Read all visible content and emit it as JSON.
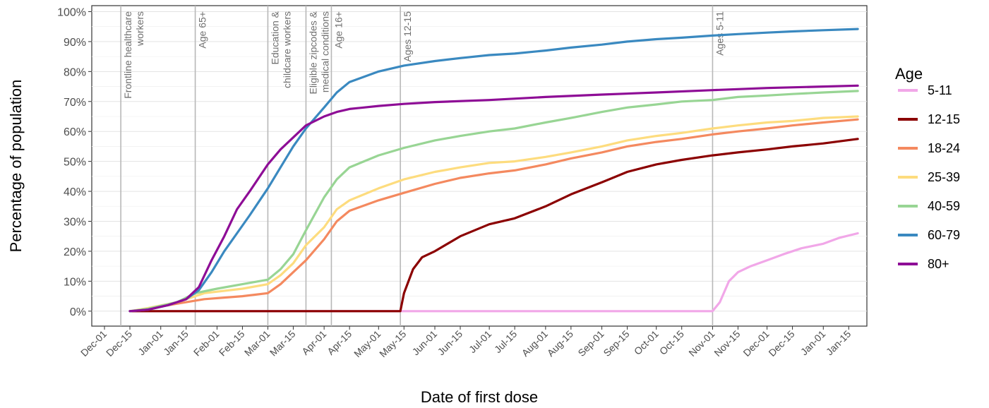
{
  "chart_data": {
    "type": "line",
    "title": "",
    "xlabel": "Date of first dose",
    "ylabel": "Percentage of population",
    "x_domain": [
      "2020-11-24",
      "2022-01-25"
    ],
    "ylim": [
      -5,
      102
    ],
    "y_ticks": [
      {
        "value": 0,
        "label": "0%"
      },
      {
        "value": 10,
        "label": "10%"
      },
      {
        "value": 20,
        "label": "20%"
      },
      {
        "value": 30,
        "label": "30%"
      },
      {
        "value": 40,
        "label": "40%"
      },
      {
        "value": 50,
        "label": "50%"
      },
      {
        "value": 60,
        "label": "60%"
      },
      {
        "value": 70,
        "label": "70%"
      },
      {
        "value": 80,
        "label": "80%"
      },
      {
        "value": 90,
        "label": "90%"
      },
      {
        "value": 100,
        "label": "100%"
      }
    ],
    "x_ticks": [
      {
        "date": "2020-12-01",
        "label": "Dec-01"
      },
      {
        "date": "2020-12-15",
        "label": "Dec-15"
      },
      {
        "date": "2021-01-01",
        "label": "Jan-01"
      },
      {
        "date": "2021-01-15",
        "label": "Jan-15"
      },
      {
        "date": "2021-02-01",
        "label": "Feb-01"
      },
      {
        "date": "2021-02-15",
        "label": "Feb-15"
      },
      {
        "date": "2021-03-01",
        "label": "Mar-01"
      },
      {
        "date": "2021-03-15",
        "label": "Mar-15"
      },
      {
        "date": "2021-04-01",
        "label": "Apr-01"
      },
      {
        "date": "2021-04-15",
        "label": "Apr-15"
      },
      {
        "date": "2021-05-01",
        "label": "May-01"
      },
      {
        "date": "2021-05-15",
        "label": "May-15"
      },
      {
        "date": "2021-06-01",
        "label": "Jun-01"
      },
      {
        "date": "2021-06-15",
        "label": "Jun-15"
      },
      {
        "date": "2021-07-01",
        "label": "Jul-01"
      },
      {
        "date": "2021-07-15",
        "label": "Jul-15"
      },
      {
        "date": "2021-08-01",
        "label": "Aug-01"
      },
      {
        "date": "2021-08-15",
        "label": "Aug-15"
      },
      {
        "date": "2021-09-01",
        "label": "Sep-01"
      },
      {
        "date": "2021-09-15",
        "label": "Sep-15"
      },
      {
        "date": "2021-10-01",
        "label": "Oct-01"
      },
      {
        "date": "2021-10-15",
        "label": "Oct-15"
      },
      {
        "date": "2021-11-01",
        "label": "Nov-01"
      },
      {
        "date": "2021-11-15",
        "label": "Nov-15"
      },
      {
        "date": "2021-12-01",
        "label": "Dec-01"
      },
      {
        "date": "2021-12-15",
        "label": "Dec-15"
      },
      {
        "date": "2022-01-01",
        "label": "Jan-01"
      },
      {
        "date": "2022-01-15",
        "label": "Jan-15"
      }
    ],
    "grid": true,
    "legend": {
      "title": "Age",
      "placement": "right"
    },
    "series": [
      {
        "name": "5-11",
        "color": "#f1a7e8",
        "points": [
          [
            "2020-12-15",
            0
          ],
          [
            "2021-11-01",
            0
          ],
          [
            "2021-11-05",
            3
          ],
          [
            "2021-11-10",
            10
          ],
          [
            "2021-11-15",
            13
          ],
          [
            "2021-11-22",
            15
          ],
          [
            "2021-12-01",
            17
          ],
          [
            "2021-12-10",
            19
          ],
          [
            "2021-12-20",
            21
          ],
          [
            "2022-01-01",
            22.5
          ],
          [
            "2022-01-10",
            24.5
          ],
          [
            "2022-01-20",
            26
          ]
        ]
      },
      {
        "name": "12-15",
        "color": "#8b0000",
        "points": [
          [
            "2020-12-15",
            0
          ],
          [
            "2021-05-13",
            0
          ],
          [
            "2021-05-15",
            6
          ],
          [
            "2021-05-20",
            14
          ],
          [
            "2021-05-25",
            18
          ],
          [
            "2021-06-01",
            20
          ],
          [
            "2021-06-15",
            25
          ],
          [
            "2021-07-01",
            29
          ],
          [
            "2021-07-15",
            31
          ],
          [
            "2021-08-01",
            35
          ],
          [
            "2021-08-15",
            39
          ],
          [
            "2021-09-01",
            43
          ],
          [
            "2021-09-15",
            46.5
          ],
          [
            "2021-10-01",
            49
          ],
          [
            "2021-10-15",
            50.5
          ],
          [
            "2021-11-01",
            52
          ],
          [
            "2021-11-15",
            53
          ],
          [
            "2021-12-01",
            54
          ],
          [
            "2021-12-15",
            55
          ],
          [
            "2022-01-01",
            56
          ],
          [
            "2022-01-20",
            57.5
          ]
        ]
      },
      {
        "name": "18-24",
        "color": "#f4895f",
        "points": [
          [
            "2020-12-15",
            0
          ],
          [
            "2020-12-25",
            0.8
          ],
          [
            "2021-01-10",
            2.5
          ],
          [
            "2021-01-25",
            4
          ],
          [
            "2021-02-15",
            5
          ],
          [
            "2021-03-01",
            6
          ],
          [
            "2021-03-08",
            9
          ],
          [
            "2021-03-15",
            13
          ],
          [
            "2021-03-22",
            17
          ],
          [
            "2021-04-01",
            24
          ],
          [
            "2021-04-08",
            30
          ],
          [
            "2021-04-15",
            33.5
          ],
          [
            "2021-05-01",
            37
          ],
          [
            "2021-05-15",
            39.5
          ],
          [
            "2021-06-01",
            42.5
          ],
          [
            "2021-06-15",
            44.5
          ],
          [
            "2021-07-01",
            46
          ],
          [
            "2021-07-15",
            47
          ],
          [
            "2021-08-01",
            49
          ],
          [
            "2021-08-15",
            51
          ],
          [
            "2021-09-01",
            53
          ],
          [
            "2021-09-15",
            55
          ],
          [
            "2021-10-01",
            56.5
          ],
          [
            "2021-10-15",
            57.5
          ],
          [
            "2021-11-01",
            59
          ],
          [
            "2021-11-15",
            60
          ],
          [
            "2021-12-01",
            61
          ],
          [
            "2021-12-15",
            62
          ],
          [
            "2022-01-01",
            63
          ],
          [
            "2022-01-20",
            64
          ]
        ]
      },
      {
        "name": "25-39",
        "color": "#fddc7e",
        "points": [
          [
            "2020-12-15",
            0
          ],
          [
            "2020-12-25",
            1
          ],
          [
            "2021-01-10",
            3
          ],
          [
            "2021-01-25",
            6
          ],
          [
            "2021-02-15",
            7.5
          ],
          [
            "2021-03-01",
            9
          ],
          [
            "2021-03-08",
            12
          ],
          [
            "2021-03-15",
            16
          ],
          [
            "2021-03-22",
            22
          ],
          [
            "2021-04-01",
            28
          ],
          [
            "2021-04-08",
            34
          ],
          [
            "2021-04-15",
            37
          ],
          [
            "2021-05-01",
            41
          ],
          [
            "2021-05-15",
            44
          ],
          [
            "2021-06-01",
            46.5
          ],
          [
            "2021-06-15",
            48
          ],
          [
            "2021-07-01",
            49.5
          ],
          [
            "2021-07-15",
            50
          ],
          [
            "2021-08-01",
            51.5
          ],
          [
            "2021-08-15",
            53
          ],
          [
            "2021-09-01",
            55
          ],
          [
            "2021-09-15",
            57
          ],
          [
            "2021-10-01",
            58.5
          ],
          [
            "2021-10-15",
            59.5
          ],
          [
            "2021-11-01",
            61
          ],
          [
            "2021-11-15",
            62
          ],
          [
            "2021-12-01",
            63
          ],
          [
            "2021-12-15",
            63.5
          ],
          [
            "2022-01-01",
            64.5
          ],
          [
            "2022-01-20",
            65
          ]
        ]
      },
      {
        "name": "40-59",
        "color": "#98d594",
        "points": [
          [
            "2020-12-15",
            0
          ],
          [
            "2020-12-25",
            0.8
          ],
          [
            "2021-01-10",
            3
          ],
          [
            "2021-01-20",
            6
          ],
          [
            "2021-02-01",
            7.5
          ],
          [
            "2021-02-15",
            9
          ],
          [
            "2021-03-01",
            10.5
          ],
          [
            "2021-03-08",
            14
          ],
          [
            "2021-03-15",
            19
          ],
          [
            "2021-03-22",
            27
          ],
          [
            "2021-04-01",
            38
          ],
          [
            "2021-04-08",
            44
          ],
          [
            "2021-04-15",
            48
          ],
          [
            "2021-05-01",
            52
          ],
          [
            "2021-05-15",
            54.5
          ],
          [
            "2021-06-01",
            57
          ],
          [
            "2021-06-15",
            58.5
          ],
          [
            "2021-07-01",
            60
          ],
          [
            "2021-07-15",
            61
          ],
          [
            "2021-08-01",
            63
          ],
          [
            "2021-08-15",
            64.5
          ],
          [
            "2021-09-01",
            66.5
          ],
          [
            "2021-09-15",
            68
          ],
          [
            "2021-10-01",
            69
          ],
          [
            "2021-10-15",
            70
          ],
          [
            "2021-11-01",
            70.5
          ],
          [
            "2021-11-15",
            71.5
          ],
          [
            "2021-12-01",
            72
          ],
          [
            "2021-12-15",
            72.5
          ],
          [
            "2022-01-01",
            73
          ],
          [
            "2022-01-20",
            73.5
          ]
        ]
      },
      {
        "name": "60-79",
        "color": "#3a89c0",
        "points": [
          [
            "2020-12-15",
            0
          ],
          [
            "2020-12-25",
            0.5
          ],
          [
            "2021-01-05",
            2
          ],
          [
            "2021-01-15",
            4
          ],
          [
            "2021-01-22",
            7
          ],
          [
            "2021-01-29",
            13
          ],
          [
            "2021-02-05",
            20
          ],
          [
            "2021-02-12",
            26
          ],
          [
            "2021-02-19",
            32
          ],
          [
            "2021-03-01",
            41
          ],
          [
            "2021-03-08",
            48
          ],
          [
            "2021-03-15",
            55
          ],
          [
            "2021-03-22",
            61
          ],
          [
            "2021-04-01",
            68
          ],
          [
            "2021-04-08",
            73
          ],
          [
            "2021-04-15",
            76.5
          ],
          [
            "2021-05-01",
            80
          ],
          [
            "2021-05-15",
            82
          ],
          [
            "2021-06-01",
            83.5
          ],
          [
            "2021-06-15",
            84.5
          ],
          [
            "2021-07-01",
            85.5
          ],
          [
            "2021-07-15",
            86
          ],
          [
            "2021-08-01",
            87
          ],
          [
            "2021-08-15",
            88
          ],
          [
            "2021-09-01",
            89
          ],
          [
            "2021-09-15",
            90
          ],
          [
            "2021-10-01",
            90.8
          ],
          [
            "2021-10-15",
            91.3
          ],
          [
            "2021-11-01",
            92
          ],
          [
            "2021-11-15",
            92.5
          ],
          [
            "2021-12-01",
            93
          ],
          [
            "2021-12-15",
            93.4
          ],
          [
            "2022-01-01",
            93.8
          ],
          [
            "2022-01-20",
            94.2
          ]
        ]
      },
      {
        "name": "80+",
        "color": "#8e0d96",
        "points": [
          [
            "2020-12-15",
            0
          ],
          [
            "2020-12-25",
            0.5
          ],
          [
            "2021-01-05",
            2
          ],
          [
            "2021-01-15",
            4
          ],
          [
            "2021-01-22",
            8
          ],
          [
            "2021-01-29",
            17
          ],
          [
            "2021-02-05",
            25
          ],
          [
            "2021-02-12",
            34
          ],
          [
            "2021-02-19",
            40
          ],
          [
            "2021-03-01",
            49
          ],
          [
            "2021-03-08",
            54
          ],
          [
            "2021-03-15",
            58
          ],
          [
            "2021-03-22",
            62
          ],
          [
            "2021-04-01",
            65
          ],
          [
            "2021-04-08",
            66.5
          ],
          [
            "2021-04-15",
            67.5
          ],
          [
            "2021-05-01",
            68.5
          ],
          [
            "2021-05-15",
            69.2
          ],
          [
            "2021-06-01",
            69.8
          ],
          [
            "2021-07-01",
            70.5
          ],
          [
            "2021-08-01",
            71.5
          ],
          [
            "2021-09-01",
            72.3
          ],
          [
            "2021-10-01",
            73
          ],
          [
            "2021-11-01",
            73.8
          ],
          [
            "2021-12-01",
            74.5
          ],
          [
            "2022-01-01",
            75
          ],
          [
            "2022-01-20",
            75.3
          ]
        ]
      }
    ],
    "annotations": [
      {
        "date": "2020-12-10",
        "lines": [
          "Frontline healthcare",
          "workers"
        ]
      },
      {
        "date": "2021-01-20",
        "lines": [
          "Age 65+"
        ]
      },
      {
        "date": "2021-03-01",
        "lines": [
          "Education &",
          "childcare workers"
        ]
      },
      {
        "date": "2021-03-22",
        "lines": [
          "Eligible zipcodes &",
          "medical conditions"
        ]
      },
      {
        "date": "2021-04-05",
        "lines": [
          "Age 16+"
        ]
      },
      {
        "date": "2021-05-13",
        "lines": [
          "Ages 12-15"
        ]
      },
      {
        "date": "2021-11-01",
        "lines": [
          "Ages 5-11"
        ]
      }
    ]
  }
}
